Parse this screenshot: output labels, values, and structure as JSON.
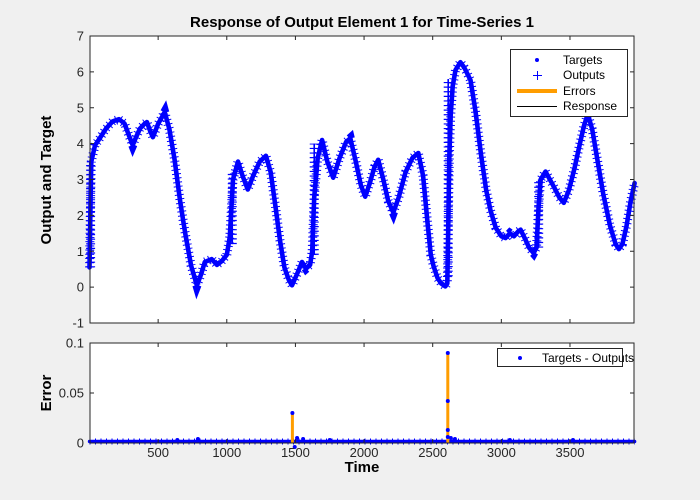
{
  "figure": {
    "background": "#F0F0F0",
    "plot_background": "#FFFFFF",
    "axis_color": "#262626",
    "tick_label_color": "#262626"
  },
  "chart_data": [
    {
      "type": "scatter",
      "title": "Response of Output Element 1 for Time-Series 1",
      "ylabel": "Output and Target",
      "xlabel": "",
      "xlim": [
        0,
        3970
      ],
      "ylim": [
        -1,
        7
      ],
      "yticks": [
        -1,
        0,
        1,
        2,
        3,
        4,
        5,
        6,
        7
      ],
      "xticks": [
        500,
        1000,
        1500,
        2000,
        2500,
        3000,
        3500
      ],
      "xtick_labels_visible": false,
      "grid": false,
      "legend": {
        "position": "northeast",
        "entries": [
          {
            "label": "Targets",
            "marker": "dot",
            "color": "#0000FF"
          },
          {
            "label": "Outputs",
            "marker": "plus",
            "color": "#0000FF"
          },
          {
            "label": "Errors",
            "marker": "thick-line",
            "color": "#FF9D00"
          },
          {
            "label": "Response",
            "marker": "line",
            "color": "#000000"
          }
        ]
      },
      "series": [
        {
          "name": "targets-outputs-response",
          "color": "#0000FF",
          "points": [
            [
              0,
              0.55
            ],
            [
              4,
              1.4
            ],
            [
              8,
              2.5
            ],
            [
              13,
              3.5
            ],
            [
              40,
              3.95
            ],
            [
              75,
              4.15
            ],
            [
              120,
              4.42
            ],
            [
              168,
              4.62
            ],
            [
              215,
              4.68
            ],
            [
              255,
              4.56
            ],
            [
              288,
              4.22
            ],
            [
              315,
              3.96
            ],
            [
              342,
              4.2
            ],
            [
              368,
              4.42
            ],
            [
              400,
              4.55
            ],
            [
              418,
              4.6
            ],
            [
              442,
              4.35
            ],
            [
              462,
              4.18
            ],
            [
              500,
              4.55
            ],
            [
              548,
              4.88
            ],
            [
              582,
              4.4
            ],
            [
              620,
              3.55
            ],
            [
              660,
              2.4
            ],
            [
              697,
              1.5
            ],
            [
              740,
              0.6
            ],
            [
              782,
              0.05
            ],
            [
              812,
              0.35
            ],
            [
              840,
              0.7
            ],
            [
              890,
              0.78
            ],
            [
              928,
              0.62
            ],
            [
              962,
              0.72
            ],
            [
              1000,
              0.9
            ],
            [
              1022,
              1.4
            ],
            [
              1045,
              3.0
            ],
            [
              1082,
              3.5
            ],
            [
              1115,
              3.1
            ],
            [
              1153,
              2.72
            ],
            [
              1192,
              3.1
            ],
            [
              1240,
              3.5
            ],
            [
              1285,
              3.66
            ],
            [
              1320,
              3.2
            ],
            [
              1356,
              2.2
            ],
            [
              1388,
              1.3
            ],
            [
              1420,
              0.55
            ],
            [
              1452,
              0.2
            ],
            [
              1475,
              0.05
            ],
            [
              1510,
              0.35
            ],
            [
              1548,
              0.7
            ],
            [
              1578,
              0.52
            ],
            [
              1607,
              0.62
            ],
            [
              1622,
              1.0
            ],
            [
              1637,
              2.5
            ],
            [
              1662,
              3.6
            ],
            [
              1694,
              4.1
            ],
            [
              1732,
              3.5
            ],
            [
              1775,
              3.05
            ],
            [
              1822,
              3.6
            ],
            [
              1870,
              4.05
            ],
            [
              1900,
              4.15
            ],
            [
              1940,
              3.5
            ],
            [
              1976,
              2.85
            ],
            [
              2008,
              2.52
            ],
            [
              2042,
              2.9
            ],
            [
              2076,
              3.35
            ],
            [
              2103,
              3.55
            ],
            [
              2140,
              3.0
            ],
            [
              2176,
              2.4
            ],
            [
              2213,
              2.08
            ],
            [
              2252,
              2.5
            ],
            [
              2302,
              3.2
            ],
            [
              2352,
              3.6
            ],
            [
              2395,
              3.74
            ],
            [
              2430,
              3.1
            ],
            [
              2462,
              1.8
            ],
            [
              2486,
              0.9
            ],
            [
              2505,
              0.6
            ],
            [
              2536,
              0.25
            ],
            [
              2562,
              0.1
            ],
            [
              2592,
              0.02
            ],
            [
              2606,
              0.1
            ],
            [
              2614,
              1.8
            ],
            [
              2621,
              3.6
            ],
            [
              2631,
              4.8
            ],
            [
              2646,
              5.6
            ],
            [
              2666,
              6.05
            ],
            [
              2702,
              6.27
            ],
            [
              2730,
              6.12
            ],
            [
              2775,
              5.77
            ],
            [
              2812,
              4.9
            ],
            [
              2852,
              3.7
            ],
            [
              2890,
              2.7
            ],
            [
              2921,
              2.14
            ],
            [
              2960,
              1.65
            ],
            [
              3000,
              1.42
            ],
            [
              3030,
              1.37
            ],
            [
              3062,
              1.5
            ],
            [
              3092,
              1.42
            ],
            [
              3122,
              1.55
            ],
            [
              3140,
              1.6
            ],
            [
              3172,
              1.35
            ],
            [
              3202,
              1.1
            ],
            [
              3235,
              0.95
            ],
            [
              3256,
              1.1
            ],
            [
              3271,
              2.2
            ],
            [
              3287,
              3.0
            ],
            [
              3322,
              3.22
            ],
            [
              3382,
              2.8
            ],
            [
              3422,
              2.5
            ],
            [
              3455,
              2.35
            ],
            [
              3492,
              2.7
            ],
            [
              3532,
              3.3
            ],
            [
              3572,
              4.0
            ],
            [
              3602,
              4.5
            ],
            [
              3630,
              4.82
            ],
            [
              3662,
              4.4
            ],
            [
              3702,
              3.5
            ],
            [
              3742,
              2.6
            ],
            [
              3792,
              1.7
            ],
            [
              3832,
              1.2
            ],
            [
              3856,
              1.06
            ],
            [
              3882,
              1.2
            ],
            [
              3912,
              1.7
            ],
            [
              3942,
              2.4
            ],
            [
              3971,
              2.9
            ]
          ]
        }
      ],
      "marker_columns": [
        {
          "t": 8,
          "v0": 0.55,
          "v1": 3.5
        },
        {
          "t": 1040,
          "v0": 1.2,
          "v1": 3.2
        },
        {
          "t": 1637,
          "v0": 0.9,
          "v1": 4.0
        },
        {
          "t": 2613,
          "v0": 0.3,
          "v1": 5.8
        },
        {
          "t": 3272,
          "v0": 1.1,
          "v1": 3.0
        }
      ]
    },
    {
      "type": "scatter",
      "title": "",
      "ylabel": "Error",
      "xlabel": "Time",
      "xlim": [
        0,
        3970
      ],
      "ylim": [
        0,
        0.1
      ],
      "yticks": [
        0,
        0.05,
        0.1
      ],
      "xticks": [
        500,
        1000,
        1500,
        2000,
        2500,
        3000,
        3500
      ],
      "xtick_labels_visible": true,
      "grid": false,
      "legend": {
        "position": "northeast",
        "entries": [
          {
            "label": "Targets - Outputs",
            "marker": "dot",
            "color": "#0000FF"
          }
        ]
      },
      "baseline": {
        "color": "#0000FF",
        "value": 0.0015,
        "t_start": 0,
        "t_end": 3971
      },
      "error_spikes": [
        {
          "t": 1478,
          "value": 0.03
        },
        {
          "t": 2610,
          "value": 0.09
        }
      ],
      "spike_color": "#FF9D00",
      "spike_dots": [
        {
          "t": 1478,
          "value": 0.03
        },
        {
          "t": 2610,
          "value": 0.09
        },
        {
          "t": 2610,
          "value": 0.042
        },
        {
          "t": 2610,
          "value": 0.013
        },
        {
          "t": 2610,
          "value": 0.006
        }
      ],
      "bumps": [
        {
          "t": 640,
          "value": 0.003
        },
        {
          "t": 790,
          "value": 0.004
        },
        {
          "t": 1495,
          "value": -0.004
        },
        {
          "t": 1512,
          "value": 0.005
        },
        {
          "t": 1556,
          "value": 0.004
        },
        {
          "t": 1750,
          "value": 0.003
        },
        {
          "t": 2632,
          "value": 0.005
        },
        {
          "t": 2662,
          "value": 0.004
        },
        {
          "t": 3062,
          "value": 0.003
        },
        {
          "t": 3522,
          "value": 0.003
        }
      ]
    }
  ]
}
